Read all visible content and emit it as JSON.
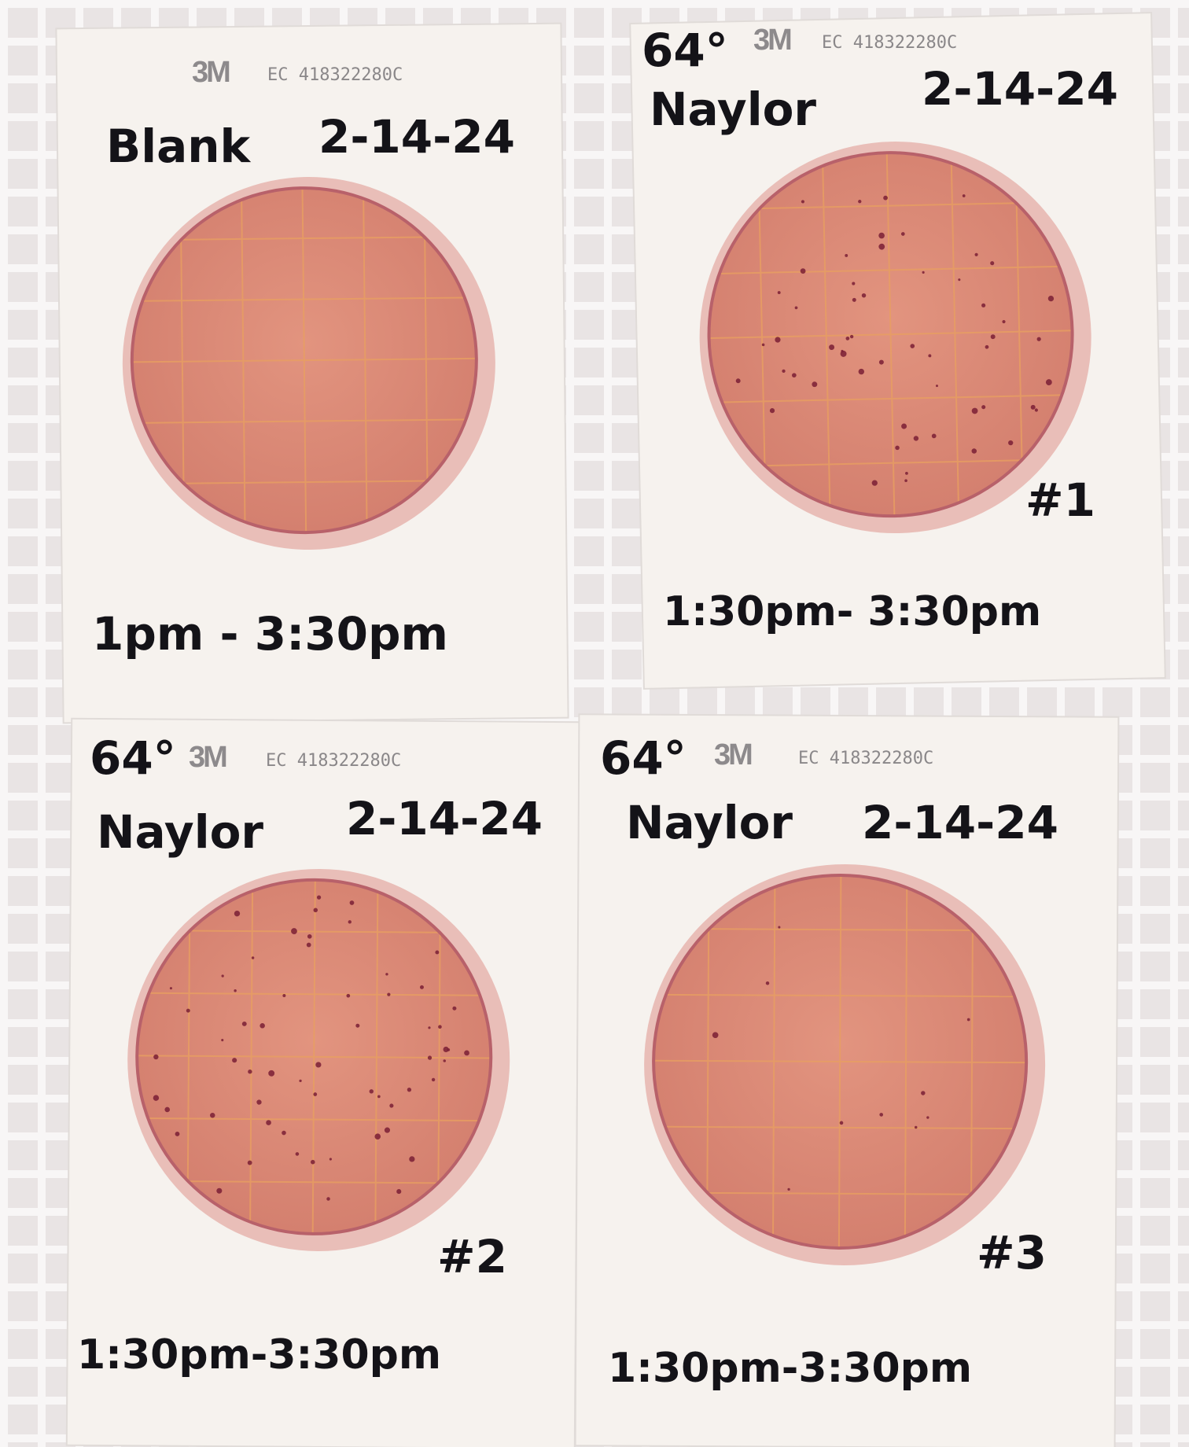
{
  "plates": [
    {
      "brand": "3M",
      "code": "EC 418322280C",
      "label": "Blank",
      "date": "2-14-24",
      "time": "1pm - 3:30pm"
    },
    {
      "temperature": "64°",
      "brand": "3M",
      "code": "EC 418322280C",
      "label": "Naylor",
      "date": "2-14-24",
      "number": "#1",
      "time": "1:30pm- 3:30pm"
    },
    {
      "temperature": "64°",
      "brand": "3M",
      "code": "EC 418322280C",
      "label": "Naylor",
      "date": "2-14-24",
      "number": "#2",
      "time": "1:30pm-3:30pm"
    },
    {
      "temperature": "64°",
      "brand": "3M",
      "code": "EC 418322280C",
      "label": "Naylor",
      "date": "2-14-24",
      "number": "#3",
      "time": "1:30pm-3:30pm"
    }
  ]
}
